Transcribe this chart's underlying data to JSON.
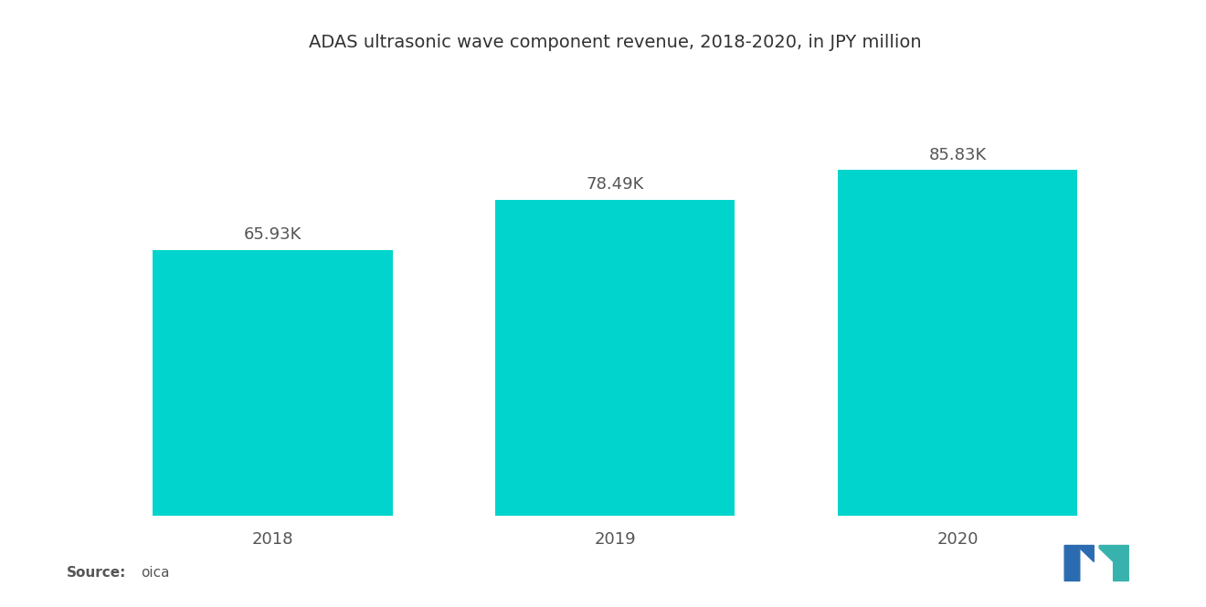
{
  "title": "ADAS ultrasonic wave component revenue, 2018-2020, in JPY million",
  "categories": [
    "2018",
    "2019",
    "2020"
  ],
  "values": [
    65930,
    78490,
    85830
  ],
  "labels": [
    "65.93K",
    "78.49K",
    "85.83K"
  ],
  "bar_color": "#00D4CC",
  "background_color": "#ffffff",
  "title_fontsize": 14,
  "label_fontsize": 13,
  "tick_fontsize": 13,
  "source_fontsize": 11,
  "ylim": [
    0,
    110000
  ],
  "bar_width": 0.7
}
